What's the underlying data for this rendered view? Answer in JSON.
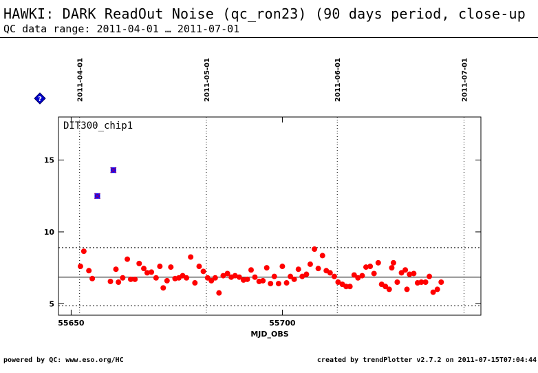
{
  "header": {
    "title": "HAWKI: DARK ReadOut Noise (qc_ron23) (90 days period, close-up",
    "subtitle": "QC data range: 2011-04-01 … 2011-07-01"
  },
  "footer": {
    "left": "powered by QC: www.eso.org/HC",
    "right": "created by trendPlotter v2.7.2 on 2011-07-15T07:04:44"
  },
  "help_icon": {
    "label": "?",
    "color": "#0000cc"
  },
  "chart_data": {
    "type": "scatter",
    "title": "",
    "panel_label": "DIT300_chip1",
    "xlabel": "MJD_OBS",
    "ylabel": "",
    "xlim": [
      55647,
      55747
    ],
    "ylim": [
      4.2,
      18.0
    ],
    "x_ticks": [
      55650,
      55700
    ],
    "x_tick_labels": [
      "55650",
      "55700"
    ],
    "y_ticks": [
      5,
      10,
      15
    ],
    "y_tick_labels": [
      "5",
      "10",
      "15"
    ],
    "date_markers": [
      {
        "x": 55652,
        "label": "2011-04-01"
      },
      {
        "x": 55682,
        "label": "2011-05-01"
      },
      {
        "x": 55713,
        "label": "2011-06-01"
      },
      {
        "x": 55743,
        "label": "2011-07-01"
      }
    ],
    "reference_lines": {
      "mean": 6.85,
      "upper": 8.9,
      "lower": 4.85
    },
    "grid": false,
    "colors": {
      "point": "#ff0000",
      "outlier_fill": "#0000ff",
      "outlier_marker": "#800080"
    },
    "outliers": [
      {
        "x": 55656.2,
        "y": 12.5
      },
      {
        "x": 55660.0,
        "y": 14.3
      }
    ],
    "points": [
      [
        55652.2,
        7.6
      ],
      [
        55653.0,
        8.65
      ],
      [
        55654.2,
        7.3
      ],
      [
        55655.0,
        6.75
      ],
      [
        55659.3,
        6.55
      ],
      [
        55660.6,
        7.4
      ],
      [
        55661.2,
        6.5
      ],
      [
        55662.2,
        6.8
      ],
      [
        55663.3,
        8.1
      ],
      [
        55664.1,
        6.7
      ],
      [
        55665.1,
        6.7
      ],
      [
        55666.1,
        7.8
      ],
      [
        55667.2,
        7.45
      ],
      [
        55668.0,
        7.15
      ],
      [
        55669.0,
        7.2
      ],
      [
        55670.1,
        6.8
      ],
      [
        55671.0,
        7.6
      ],
      [
        55671.8,
        6.1
      ],
      [
        55672.7,
        6.6
      ],
      [
        55673.6,
        7.55
      ],
      [
        55674.6,
        6.75
      ],
      [
        55675.5,
        6.8
      ],
      [
        55676.4,
        6.95
      ],
      [
        55677.3,
        6.8
      ],
      [
        55678.3,
        8.25
      ],
      [
        55679.3,
        6.45
      ],
      [
        55680.3,
        7.6
      ],
      [
        55681.3,
        7.25
      ],
      [
        55682.3,
        6.8
      ],
      [
        55683.2,
        6.6
      ],
      [
        55684.1,
        6.8
      ],
      [
        55685.0,
        5.75
      ],
      [
        55686.0,
        6.95
      ],
      [
        55687.0,
        7.1
      ],
      [
        55687.9,
        6.85
      ],
      [
        55688.8,
        6.95
      ],
      [
        55689.8,
        6.85
      ],
      [
        55690.8,
        6.65
      ],
      [
        55691.7,
        6.7
      ],
      [
        55692.6,
        7.35
      ],
      [
        55693.5,
        6.85
      ],
      [
        55694.5,
        6.55
      ],
      [
        55695.4,
        6.6
      ],
      [
        55696.3,
        7.5
      ],
      [
        55697.2,
        6.4
      ],
      [
        55698.1,
        6.9
      ],
      [
        55699.1,
        6.4
      ],
      [
        55700.0,
        7.6
      ],
      [
        55701.0,
        6.45
      ],
      [
        55701.9,
        6.9
      ],
      [
        55702.8,
        6.7
      ],
      [
        55703.8,
        7.4
      ],
      [
        55704.7,
        6.9
      ],
      [
        55705.7,
        7.05
      ],
      [
        55706.6,
        7.75
      ],
      [
        55707.6,
        8.8
      ],
      [
        55708.5,
        7.45
      ],
      [
        55709.5,
        8.35
      ],
      [
        55710.4,
        7.3
      ],
      [
        55711.3,
        7.15
      ],
      [
        55712.3,
        6.9
      ],
      [
        55713.2,
        6.5
      ],
      [
        55714.2,
        6.35
      ],
      [
        55715.1,
        6.2
      ],
      [
        55716.0,
        6.2
      ],
      [
        55717.0,
        7.0
      ],
      [
        55717.9,
        6.8
      ],
      [
        55718.9,
        6.95
      ],
      [
        55719.8,
        7.55
      ],
      [
        55720.8,
        7.6
      ],
      [
        55721.7,
        7.1
      ],
      [
        55722.7,
        7.85
      ],
      [
        55723.5,
        6.35
      ],
      [
        55724.4,
        6.2
      ],
      [
        55725.3,
        6.0
      ],
      [
        55725.9,
        7.5
      ],
      [
        55726.3,
        7.85
      ],
      [
        55727.2,
        6.5
      ],
      [
        55728.2,
        7.15
      ],
      [
        55729.1,
        7.35
      ],
      [
        55729.5,
        6.0
      ],
      [
        55730.1,
        7.05
      ],
      [
        55731.1,
        7.1
      ],
      [
        55732.0,
        6.45
      ],
      [
        55732.9,
        6.5
      ],
      [
        55733.9,
        6.5
      ],
      [
        55734.8,
        6.9
      ],
      [
        55735.7,
        5.8
      ],
      [
        55736.7,
        6.0
      ],
      [
        55737.6,
        6.5
      ]
    ]
  }
}
